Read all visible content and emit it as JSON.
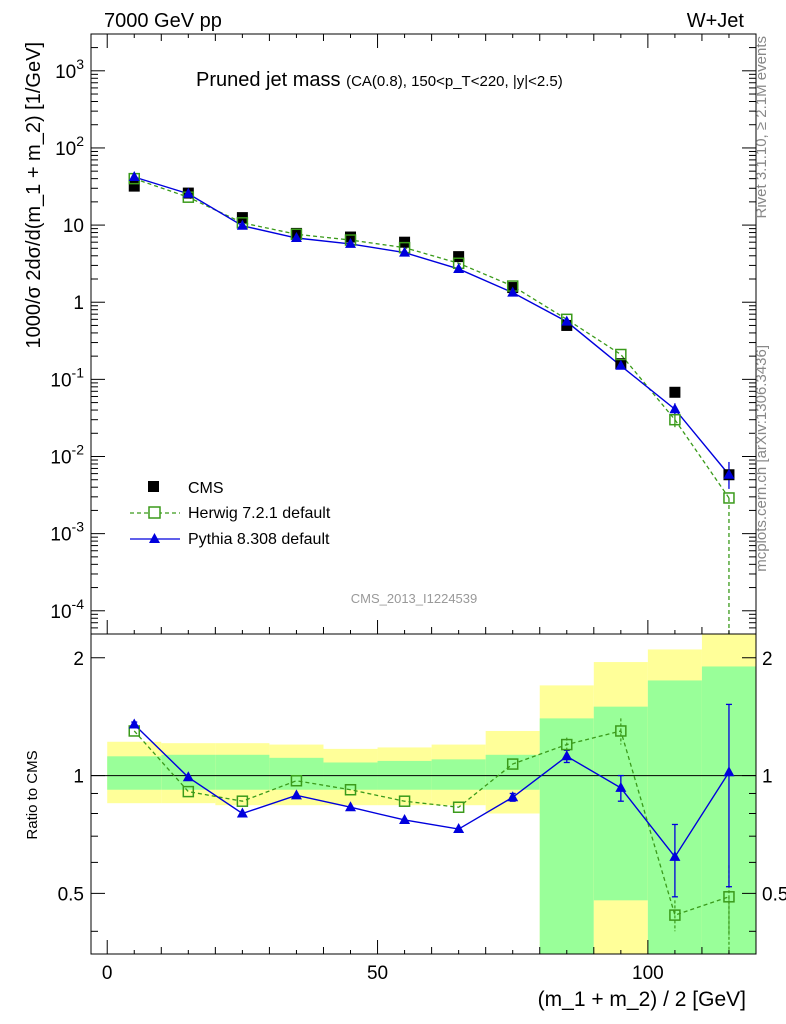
{
  "header": {
    "left": "7000 GeV pp",
    "right": "W+Jet"
  },
  "chart_data": {
    "type": "line",
    "title": "Pruned jet mass",
    "title_sub": "(CA(0.8), 150<p_T<220, |y|<2.5)",
    "ylabel": "1000/σ 2dσ/d(m_1 + m_2) [1/GeV]",
    "xlabel": "(m_1 + m_2) / 2 [GeV]",
    "ratio_ylabel": "Ratio to CMS",
    "watermark": "CMS_2013_I1224539",
    "side_label_top": "Rivet 3.1.10, ≥ 2.1M events",
    "side_label_bottom": "mcplots.cern.ch [arXiv:1306.3436]",
    "scale": "log",
    "xlim": [
      -3,
      120
    ],
    "ylim": [
      5e-05,
      3000
    ],
    "ratio_ylim": [
      0.35,
      2.3
    ],
    "x_ticks": [
      "0",
      "50",
      "100"
    ],
    "y_ticks": [
      "10^-4",
      "10^-3",
      "10^-2",
      "10^-1",
      "1",
      "10",
      "10^2",
      "10^3"
    ],
    "ratio_ticks": [
      "0.5",
      "1",
      "2"
    ],
    "bin_edges": [
      0,
      10,
      20,
      30,
      40,
      50,
      60,
      70,
      80,
      90,
      100,
      110,
      120
    ],
    "legend_position": "bottom-left",
    "series": [
      {
        "name": "CMS",
        "style": "marker-square-filled",
        "color": "#000000",
        "x": [
          5,
          15,
          25,
          35,
          45,
          55,
          65,
          75,
          85,
          95,
          105,
          115
        ],
        "values": [
          32,
          26,
          12.5,
          7.8,
          7.0,
          6.0,
          3.9,
          1.55,
          0.5,
          0.16,
          0.068,
          0.0058
        ]
      },
      {
        "name": "Herwig 7.2.1 default",
        "style": "dashed-open-square",
        "color": "#3a9a1a",
        "x": [
          5,
          15,
          25,
          35,
          45,
          55,
          65,
          75,
          85,
          95,
          105,
          115
        ],
        "values": [
          40,
          23,
          10.7,
          7.6,
          6.4,
          5.1,
          3.2,
          1.62,
          0.6,
          0.21,
          0.03,
          0.0029
        ],
        "ratio": [
          1.3,
          0.91,
          0.86,
          0.97,
          0.92,
          0.86,
          0.83,
          1.07,
          1.2,
          1.3,
          0.44,
          0.49
        ],
        "ratio_err": [
          0.02,
          0.02,
          0.02,
          0.02,
          0.02,
          0.02,
          0.02,
          0.03,
          0.05,
          0.1,
          0.04,
          0.1
        ]
      },
      {
        "name": "Pythia 8.308 default",
        "style": "solid-filled-triangle",
        "color": "#0000dd",
        "x": [
          5,
          15,
          25,
          35,
          45,
          55,
          65,
          75,
          85,
          95,
          105,
          115
        ],
        "values": [
          42,
          25.5,
          9.8,
          6.8,
          5.7,
          4.4,
          2.7,
          1.33,
          0.56,
          0.15,
          0.041,
          0.0058
        ],
        "ratio": [
          1.35,
          0.99,
          0.8,
          0.89,
          0.83,
          0.77,
          0.73,
          0.88,
          1.12,
          0.93,
          0.62,
          1.02
        ],
        "ratio_err": [
          0.02,
          0.01,
          0.01,
          0.01,
          0.01,
          0.01,
          0.01,
          0.02,
          0.04,
          0.07,
          0.13,
          0.5
        ]
      }
    ],
    "ratio_bands": {
      "green_color": "#99ff99",
      "yellow_color": "#ffff99",
      "green_lo": [
        0.92,
        0.92,
        0.92,
        0.92,
        0.92,
        0.92,
        0.92,
        0.92,
        0.35,
        0.48,
        0.35,
        0.35
      ],
      "green_hi": [
        1.12,
        1.13,
        1.13,
        1.11,
        1.08,
        1.09,
        1.1,
        1.13,
        1.4,
        1.5,
        1.75,
        1.9
      ],
      "yellow_lo": [
        0.85,
        0.85,
        0.84,
        0.84,
        0.84,
        0.84,
        0.84,
        0.8,
        0.35,
        0.35,
        0.35,
        0.35
      ],
      "yellow_hi": [
        1.22,
        1.21,
        1.21,
        1.2,
        1.17,
        1.18,
        1.2,
        1.3,
        1.7,
        1.95,
        2.1,
        2.3
      ]
    }
  }
}
